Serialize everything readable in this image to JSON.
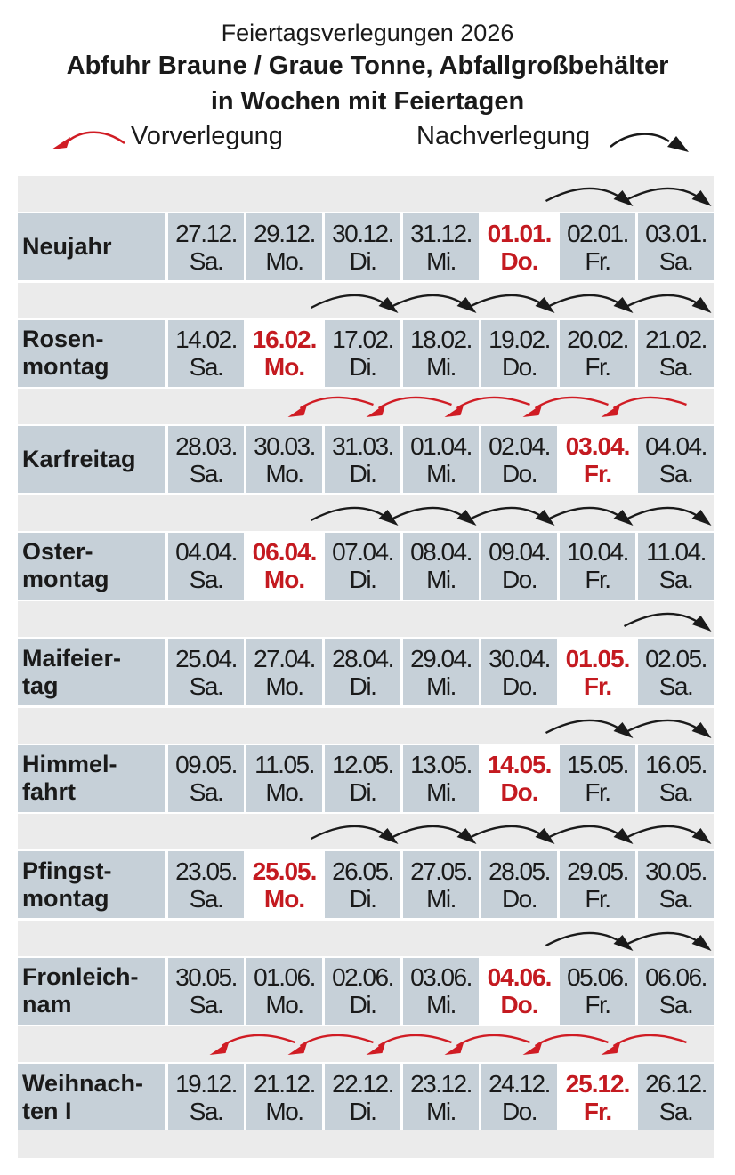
{
  "header": {
    "subtitle": "Feiertagsverlegungen 2026",
    "title_line1": "Abfuhr Braune / Graue Tonne, Abfallgroßbehälter",
    "title_line2": "in Wochen mit Feiertagen"
  },
  "legend": {
    "vor_label": "Vorverlegung",
    "nach_label": "Nachverlegung",
    "vor_icon": "curved-arrow-left-red",
    "nach_icon": "curved-arrow-right-black"
  },
  "colors": {
    "holiday": "#c41a20",
    "cell_bg": "#c6d0d8",
    "band_bg": "#ebebeb",
    "arrow_black": "#1a1a1a",
    "arrow_red": "#d01c24"
  },
  "rows": [
    {
      "name": [
        "Neujahr"
      ],
      "shift": "nach",
      "holiday_index": 4,
      "arrows": [
        [
          5,
          6
        ],
        [
          6,
          7
        ]
      ],
      "days": [
        {
          "date": "27.12.",
          "day": "Sa."
        },
        {
          "date": "29.12.",
          "day": "Mo."
        },
        {
          "date": "30.12.",
          "day": "Di."
        },
        {
          "date": "31.12.",
          "day": "Mi."
        },
        {
          "date": "01.01.",
          "day": "Do."
        },
        {
          "date": "02.01.",
          "day": "Fr."
        },
        {
          "date": "03.01.",
          "day": "Sa."
        }
      ]
    },
    {
      "name": [
        "Rosen-",
        "montag"
      ],
      "shift": "nach",
      "holiday_index": 1,
      "arrows": [
        [
          2,
          3
        ],
        [
          3,
          4
        ],
        [
          4,
          5
        ],
        [
          5,
          6
        ],
        [
          6,
          7
        ]
      ],
      "days": [
        {
          "date": "14.02.",
          "day": "Sa."
        },
        {
          "date": "16.02.",
          "day": "Mo."
        },
        {
          "date": "17.02.",
          "day": "Di."
        },
        {
          "date": "18.02.",
          "day": "Mi."
        },
        {
          "date": "19.02.",
          "day": "Do."
        },
        {
          "date": "20.02.",
          "day": "Fr."
        },
        {
          "date": "21.02.",
          "day": "Sa."
        }
      ]
    },
    {
      "name": [
        "Karfreitag"
      ],
      "shift": "vor",
      "holiday_index": 5,
      "arrows": [
        [
          2,
          1
        ],
        [
          3,
          2
        ],
        [
          4,
          3
        ],
        [
          5,
          4
        ],
        [
          6,
          5
        ]
      ],
      "days": [
        {
          "date": "28.03.",
          "day": "Sa."
        },
        {
          "date": "30.03.",
          "day": "Mo."
        },
        {
          "date": "31.03.",
          "day": "Di."
        },
        {
          "date": "01.04.",
          "day": "Mi."
        },
        {
          "date": "02.04.",
          "day": "Do."
        },
        {
          "date": "03.04.",
          "day": "Fr."
        },
        {
          "date": "04.04.",
          "day": "Sa."
        }
      ]
    },
    {
      "name": [
        "Oster-",
        "montag"
      ],
      "shift": "nach",
      "holiday_index": 1,
      "arrows": [
        [
          2,
          3
        ],
        [
          3,
          4
        ],
        [
          4,
          5
        ],
        [
          5,
          6
        ],
        [
          6,
          7
        ]
      ],
      "days": [
        {
          "date": "04.04.",
          "day": "Sa."
        },
        {
          "date": "06.04.",
          "day": "Mo."
        },
        {
          "date": "07.04.",
          "day": "Di."
        },
        {
          "date": "08.04.",
          "day": "Mi."
        },
        {
          "date": "09.04.",
          "day": "Do."
        },
        {
          "date": "10.04.",
          "day": "Fr."
        },
        {
          "date": "11.04.",
          "day": "Sa."
        }
      ]
    },
    {
      "name": [
        "Maifeier-",
        "tag"
      ],
      "shift": "nach",
      "holiday_index": 5,
      "arrows": [
        [
          6,
          7
        ]
      ],
      "days": [
        {
          "date": "25.04.",
          "day": "Sa."
        },
        {
          "date": "27.04.",
          "day": "Mo."
        },
        {
          "date": "28.04.",
          "day": "Di."
        },
        {
          "date": "29.04.",
          "day": "Mi."
        },
        {
          "date": "30.04.",
          "day": "Do."
        },
        {
          "date": "01.05.",
          "day": "Fr."
        },
        {
          "date": "02.05.",
          "day": "Sa."
        }
      ]
    },
    {
      "name": [
        "Himmel-",
        "fahrt"
      ],
      "shift": "nach",
      "holiday_index": 4,
      "arrows": [
        [
          5,
          6
        ],
        [
          6,
          7
        ]
      ],
      "days": [
        {
          "date": "09.05.",
          "day": "Sa."
        },
        {
          "date": "11.05.",
          "day": "Mo."
        },
        {
          "date": "12.05.",
          "day": "Di."
        },
        {
          "date": "13.05.",
          "day": "Mi."
        },
        {
          "date": "14.05.",
          "day": "Do."
        },
        {
          "date": "15.05.",
          "day": "Fr."
        },
        {
          "date": "16.05.",
          "day": "Sa."
        }
      ]
    },
    {
      "name": [
        "Pfingst-",
        "montag"
      ],
      "shift": "nach",
      "holiday_index": 1,
      "arrows": [
        [
          2,
          3
        ],
        [
          3,
          4
        ],
        [
          4,
          5
        ],
        [
          5,
          6
        ],
        [
          6,
          7
        ]
      ],
      "days": [
        {
          "date": "23.05.",
          "day": "Sa."
        },
        {
          "date": "25.05.",
          "day": "Mo."
        },
        {
          "date": "26.05.",
          "day": "Di."
        },
        {
          "date": "27.05.",
          "day": "Mi."
        },
        {
          "date": "28.05.",
          "day": "Do."
        },
        {
          "date": "29.05.",
          "day": "Fr."
        },
        {
          "date": "30.05.",
          "day": "Sa."
        }
      ]
    },
    {
      "name": [
        "Fronleich-",
        "nam"
      ],
      "shift": "nach",
      "holiday_index": 4,
      "arrows": [
        [
          5,
          6
        ],
        [
          6,
          7
        ]
      ],
      "days": [
        {
          "date": "30.05.",
          "day": "Sa."
        },
        {
          "date": "01.06.",
          "day": "Mo."
        },
        {
          "date": "02.06.",
          "day": "Di."
        },
        {
          "date": "03.06.",
          "day": "Mi."
        },
        {
          "date": "04.06.",
          "day": "Do."
        },
        {
          "date": "05.06.",
          "day": "Fr."
        },
        {
          "date": "06.06.",
          "day": "Sa."
        }
      ]
    },
    {
      "name": [
        "Weihnach-",
        "ten I"
      ],
      "shift": "vor",
      "holiday_index": 5,
      "arrows": [
        [
          1,
          0
        ],
        [
          2,
          1
        ],
        [
          3,
          2
        ],
        [
          4,
          3
        ],
        [
          5,
          4
        ],
        [
          6,
          5
        ]
      ],
      "days": [
        {
          "date": "19.12.",
          "day": "Sa."
        },
        {
          "date": "21.12.",
          "day": "Mo."
        },
        {
          "date": "22.12.",
          "day": "Di."
        },
        {
          "date": "23.12.",
          "day": "Mi."
        },
        {
          "date": "24.12.",
          "day": "Do."
        },
        {
          "date": "25.12.",
          "day": "Fr."
        },
        {
          "date": "26.12.",
          "day": "Sa."
        }
      ]
    }
  ]
}
